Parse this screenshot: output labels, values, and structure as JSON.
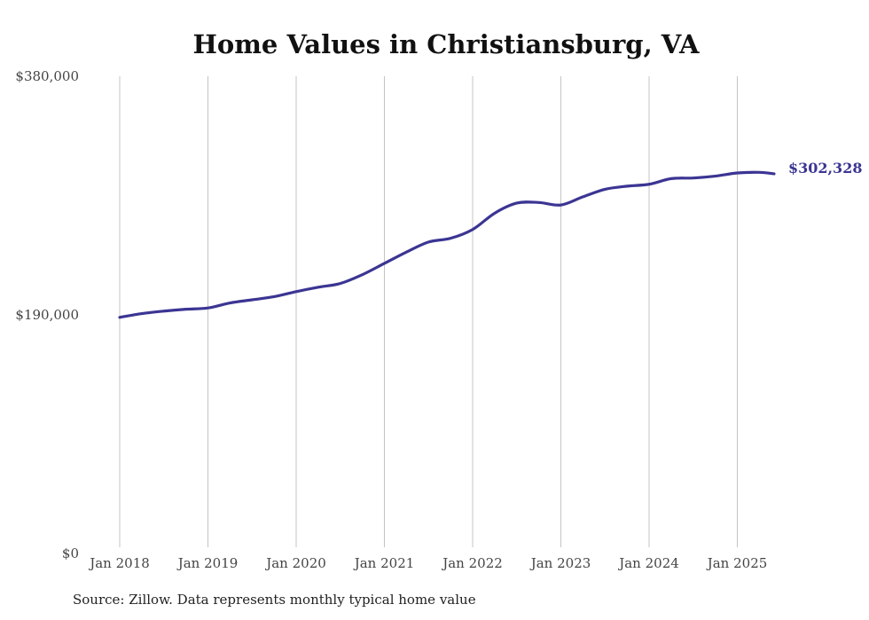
{
  "colors": {
    "line": "#3b3593",
    "grid": "#c4c4c4",
    "text": "#444444"
  },
  "chart_data": {
    "type": "line",
    "title": "Home Values in Christiansburg, VA",
    "xlabel": "",
    "ylabel": "",
    "ylim": [
      0,
      380000
    ],
    "y_ticks": [
      {
        "value": 0,
        "label": "$0"
      },
      {
        "value": 190000,
        "label": "$190,000"
      },
      {
        "value": 380000,
        "label": "$380,000"
      }
    ],
    "x_ticks": [
      {
        "value": "2018-01",
        "label": "Jan 2018"
      },
      {
        "value": "2019-01",
        "label": "Jan 2019"
      },
      {
        "value": "2020-01",
        "label": "Jan 2020"
      },
      {
        "value": "2021-01",
        "label": "Jan 2021"
      },
      {
        "value": "2022-01",
        "label": "Jan 2022"
      },
      {
        "value": "2023-01",
        "label": "Jan 2023"
      },
      {
        "value": "2024-01",
        "label": "Jan 2024"
      },
      {
        "value": "2025-01",
        "label": "Jan 2025"
      }
    ],
    "grid": {
      "vertical": true,
      "horizontal": false
    },
    "series": [
      {
        "color": "#3b3593",
        "end_label": "$302,328",
        "points": [
          [
            "2018-01",
            188000
          ],
          [
            "2018-04",
            191000
          ],
          [
            "2018-07",
            193000
          ],
          [
            "2018-10",
            194500
          ],
          [
            "2019-01",
            195500
          ],
          [
            "2019-04",
            199500
          ],
          [
            "2019-07",
            202000
          ],
          [
            "2019-10",
            204500
          ],
          [
            "2020-01",
            208500
          ],
          [
            "2020-04",
            212000
          ],
          [
            "2020-07",
            215000
          ],
          [
            "2020-10",
            222000
          ],
          [
            "2021-01",
            231000
          ],
          [
            "2021-04",
            240000
          ],
          [
            "2021-07",
            248000
          ],
          [
            "2021-10",
            251000
          ],
          [
            "2022-01",
            258000
          ],
          [
            "2022-04",
            271000
          ],
          [
            "2022-07",
            279000
          ],
          [
            "2022-10",
            279500
          ],
          [
            "2023-01",
            277500
          ],
          [
            "2023-04",
            284000
          ],
          [
            "2023-07",
            290000
          ],
          [
            "2023-10",
            292500
          ],
          [
            "2024-01",
            294000
          ],
          [
            "2024-04",
            298500
          ],
          [
            "2024-07",
            299000
          ],
          [
            "2024-10",
            300500
          ],
          [
            "2025-01",
            303000
          ],
          [
            "2025-04",
            303500
          ],
          [
            "2025-06",
            302328
          ]
        ]
      }
    ],
    "note": "Source: Zillow. Data represents monthly typical home value"
  }
}
